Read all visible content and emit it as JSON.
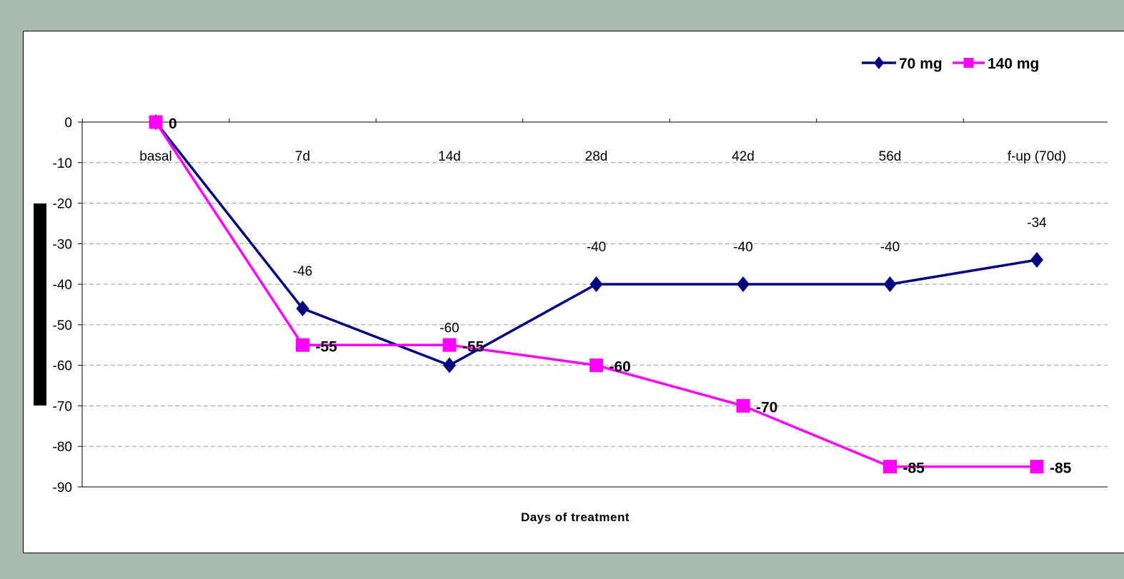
{
  "chart_data": {
    "type": "line",
    "title": "",
    "xlabel": "Days of treatment",
    "ylabel": "",
    "categories": [
      "basal",
      "7d",
      "14d",
      "28d",
      "42d",
      "56d",
      "f-up (70d)"
    ],
    "ylim": [
      -90,
      0
    ],
    "yticks": [
      0,
      -10,
      -20,
      -30,
      -40,
      -50,
      -60,
      -70,
      -80,
      -90
    ],
    "grid": true,
    "legend_position": "top-right",
    "series": [
      {
        "name": "70 mg",
        "values": [
          0,
          -46,
          -60,
          -40,
          -40,
          -40,
          -34
        ],
        "labels": [
          "",
          "-46",
          "-60",
          "-40",
          "-40",
          "-40",
          "-34"
        ],
        "color": "#000080",
        "marker": "diamond"
      },
      {
        "name": "140 mg",
        "values": [
          0,
          -55,
          -55,
          -60,
          -70,
          -85,
          -85
        ],
        "labels": [
          "0",
          "-55",
          "-55",
          "-60",
          "-70",
          "-85",
          "-85"
        ],
        "color": "#ff00ff",
        "marker": "square"
      }
    ]
  }
}
